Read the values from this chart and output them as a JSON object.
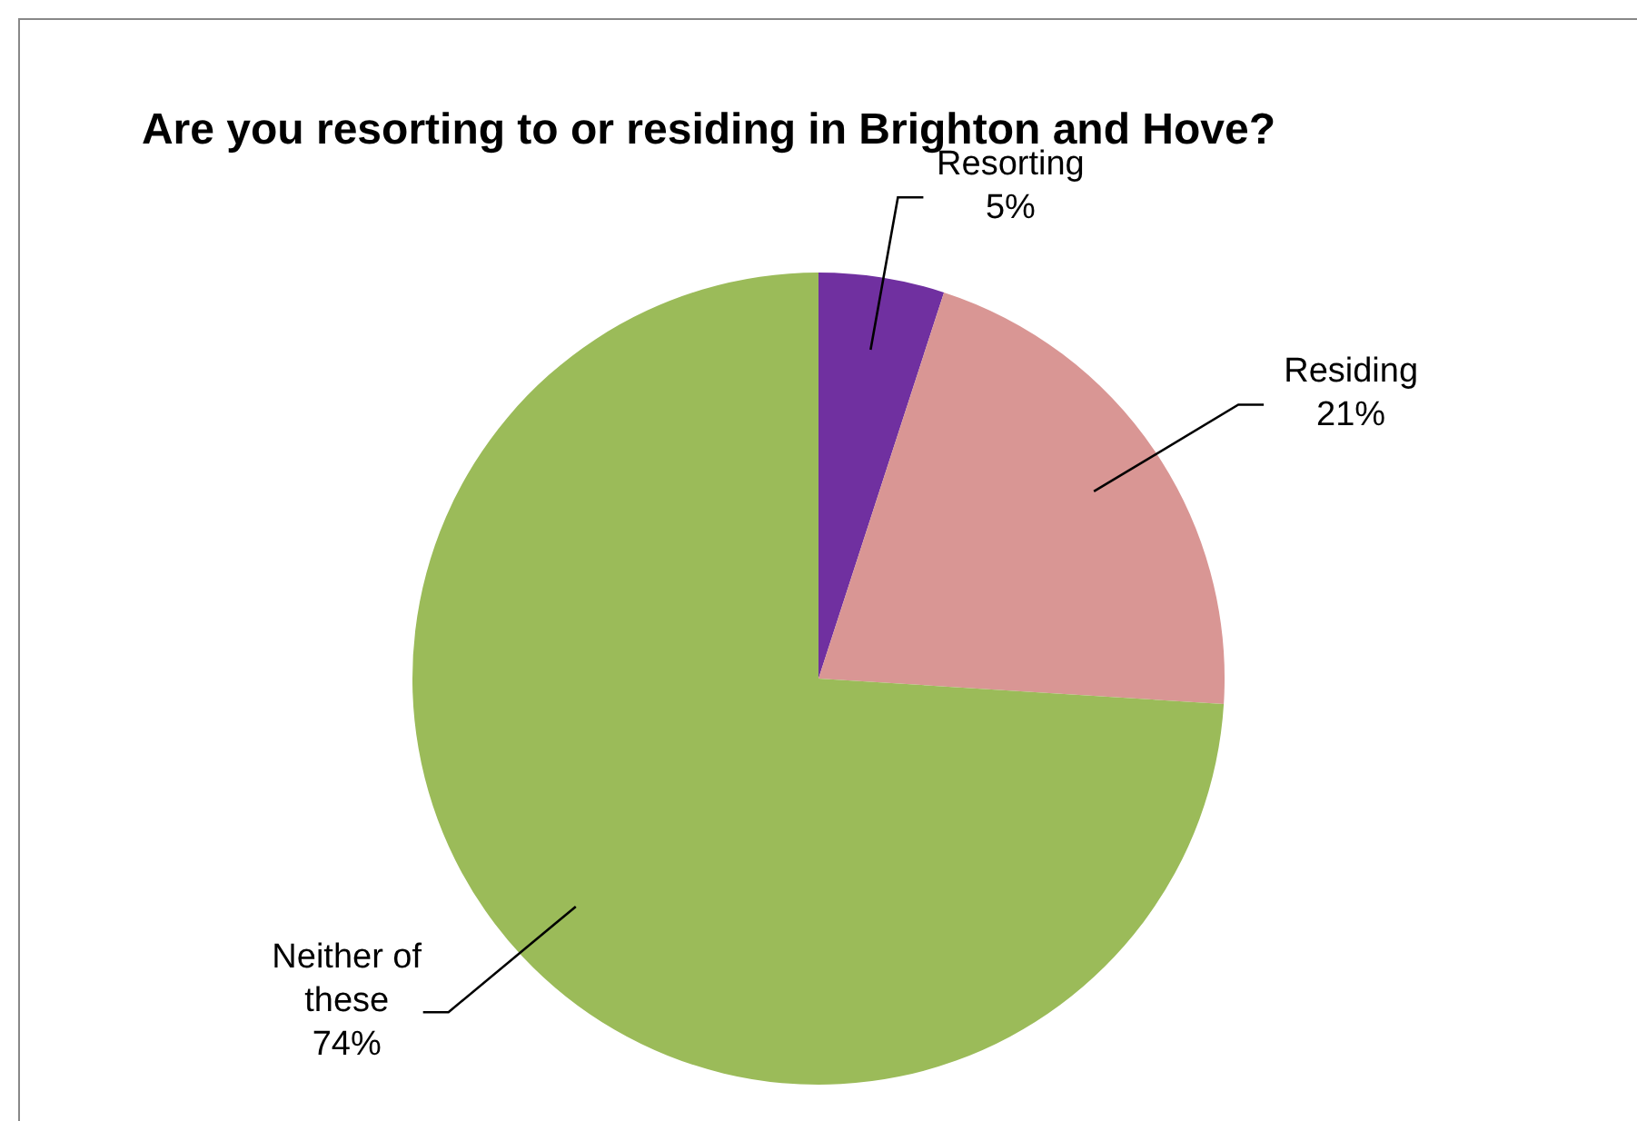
{
  "chart_data": {
    "type": "pie",
    "title": "Are you resorting to or residing in Brighton and Hove?",
    "categories": [
      "Resorting",
      "Residing",
      "Neither of these"
    ],
    "values": [
      5,
      21,
      74
    ],
    "colors": [
      "#7030a0",
      "#d99694",
      "#9bbb59"
    ],
    "value_labels": [
      "5%",
      "21%",
      "74%"
    ],
    "legend": false
  }
}
